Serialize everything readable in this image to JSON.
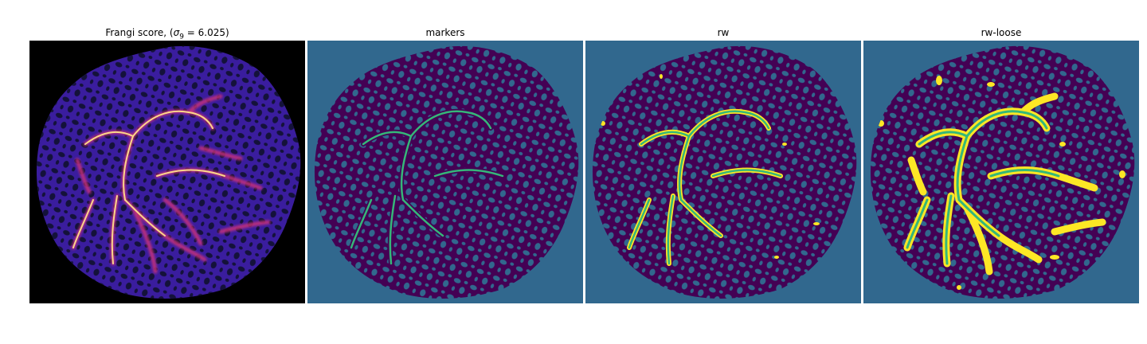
{
  "panels": [
    {
      "title_prefix": "Frangi score, (",
      "title_sigma": "σ",
      "title_sigma_sub": "9",
      "title_suffix": " = 6.025)",
      "content": "frangi-vesselness-map",
      "colormap": "magma"
    },
    {
      "title": "markers",
      "content": "marker-label-map",
      "colormap": "viridis"
    },
    {
      "title": "rw",
      "content": "random-walker-segmentation",
      "colormap": "viridis"
    },
    {
      "title": "rw-loose",
      "content": "random-walker-loose-segmentation",
      "colormap": "viridis"
    }
  ],
  "colors": {
    "background_black": "#000000",
    "tissue_dark_purple": "#2a0e55",
    "frangi_blob": "#14123a",
    "frangi_vessel_core": "#fbd68a",
    "frangi_vessel_glow": "#c8307a",
    "viridis_bg": "#31688e",
    "viridis_low": "#440154",
    "viridis_mid": "#35b779",
    "viridis_high": "#fde725"
  }
}
